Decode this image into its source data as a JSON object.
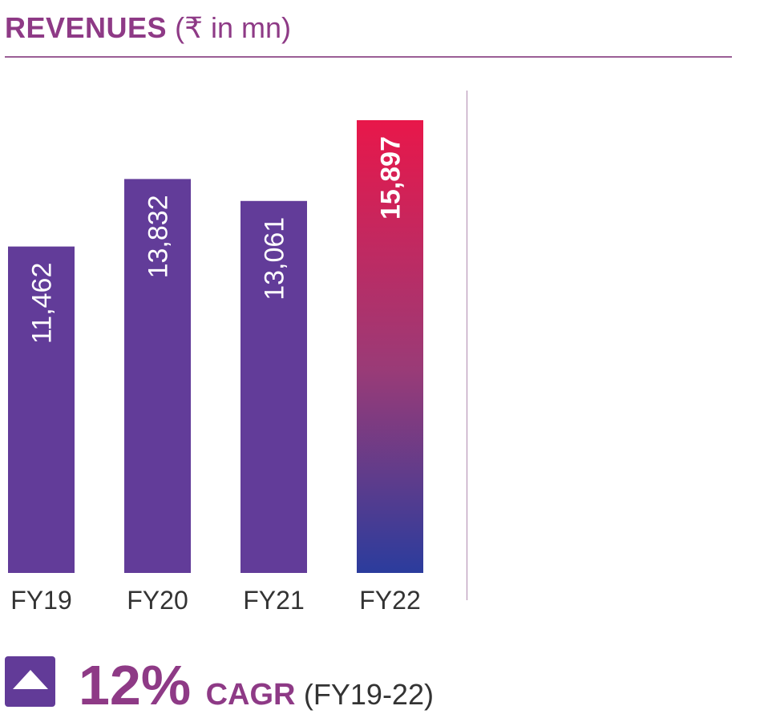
{
  "header": {
    "title_bold": "REVENUES",
    "title_unit": "(₹ in mn)"
  },
  "chart_data": {
    "type": "bar",
    "categories": [
      "FY19",
      "FY20",
      "FY21",
      "FY22"
    ],
    "values": [
      11462,
      13832,
      13061,
      15897
    ],
    "value_labels": [
      "11,462",
      "13,832",
      "13,061",
      "15,897"
    ],
    "highlight_index": 3,
    "grid": false,
    "colors": {
      "bar": "#623c99",
      "highlight_top": "#e8174a",
      "highlight_mid": "#9a3b77",
      "highlight_bottom": "#2b3c9d",
      "label_on_bar": "#ffffff",
      "category_label": "#333333"
    }
  },
  "cagr": {
    "icon": "up-triangle-icon",
    "value": "12%",
    "label": "CAGR",
    "period": "(FY19-22)"
  },
  "colors": {
    "accent": "#8e3a86",
    "rule": "#9b5f96"
  }
}
